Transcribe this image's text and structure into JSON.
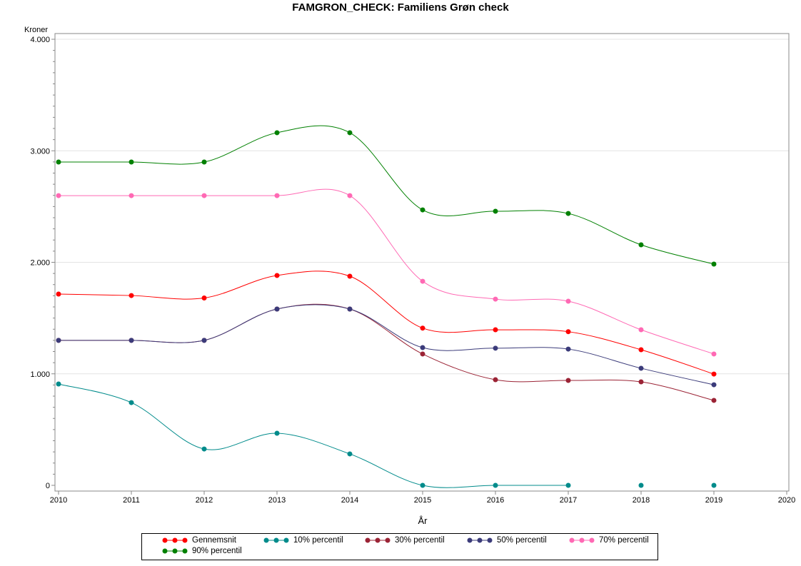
{
  "chart_data": {
    "type": "line",
    "title": "FAMGRON_CHECK: Familiens Grøn check",
    "xlabel": "År",
    "ylabel": "Kroner",
    "x": [
      2010,
      2011,
      2012,
      2013,
      2014,
      2015,
      2016,
      2017,
      2018,
      2019
    ],
    "xlim": [
      2010,
      2020
    ],
    "ylim": [
      0,
      4000
    ],
    "xticks": [
      "2010",
      "2011",
      "2012",
      "2013",
      "2014",
      "2015",
      "2016",
      "2017",
      "2018",
      "2019",
      "2020"
    ],
    "yticks": [
      "0",
      "1.000",
      "2.000",
      "3.000",
      "4.000"
    ],
    "ytick_values": [
      0,
      1000,
      2000,
      3000,
      4000
    ],
    "grid": "horizontal",
    "smooth": true,
    "legend_position": "bottom",
    "series": [
      {
        "name": "Gennemsnit",
        "color": "#ff0000",
        "values": [
          1715,
          1702,
          1680,
          1882,
          1875,
          1410,
          1395,
          1378,
          1216,
          998
        ]
      },
      {
        "name": "10% percentil",
        "color": "#008b8b",
        "values": [
          909,
          742,
          326,
          467,
          282,
          0,
          0,
          0,
          0,
          0
        ]
      },
      {
        "name": "30% percentil",
        "color": "#9b2335",
        "values": [
          1300,
          1300,
          1300,
          1581,
          1581,
          1178,
          947,
          941,
          928,
          762
        ]
      },
      {
        "name": "50% percentil",
        "color": "#3b3b7a",
        "values": [
          1300,
          1300,
          1300,
          1581,
          1581,
          1235,
          1230,
          1222,
          1050,
          902
        ]
      },
      {
        "name": "70% percentil",
        "color": "#ff69b4",
        "values": [
          2598,
          2598,
          2598,
          2598,
          2598,
          1830,
          1670,
          1651,
          1395,
          1178
        ]
      },
      {
        "name": "90% percentil",
        "color": "#008000",
        "values": [
          2899,
          2899,
          2899,
          3162,
          3162,
          2470,
          2458,
          2438,
          2157,
          1984
        ]
      }
    ]
  }
}
